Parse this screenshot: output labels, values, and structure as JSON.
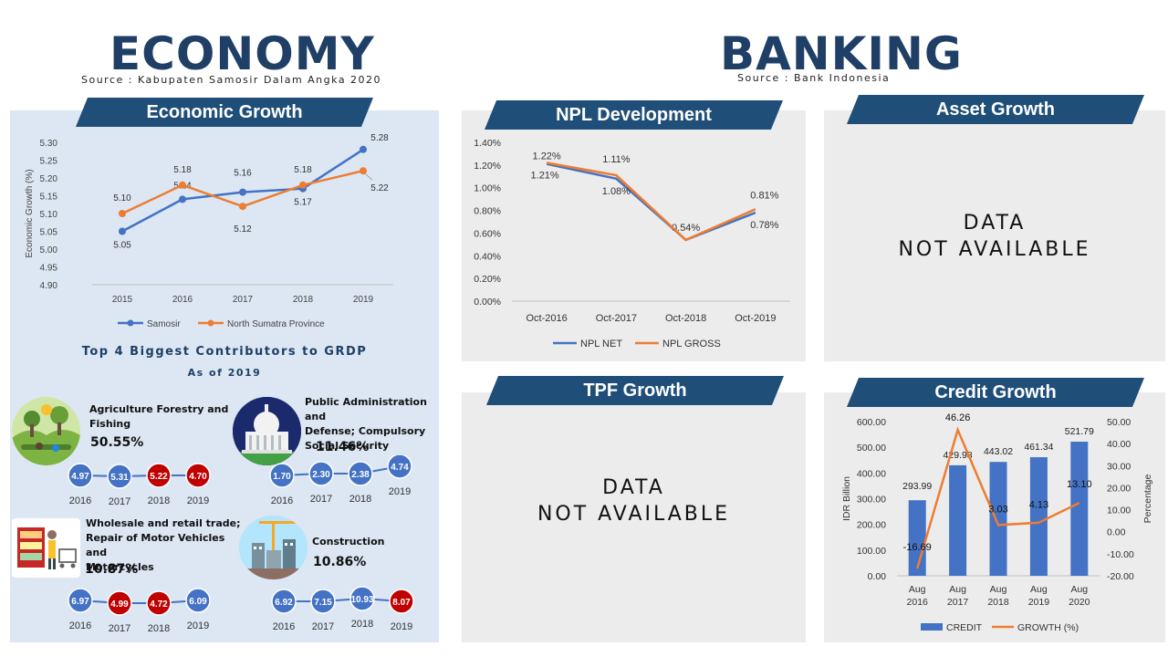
{
  "economy": {
    "title": "ECONOMY",
    "source": "Source : Kabupaten Samosir Dalam Angka 2020",
    "growth_banner": "Economic Growth",
    "contrib_title": "Top 4 Biggest Contributors to GRDP",
    "contrib_sub": "As of 2019",
    "contributors": [
      {
        "name_lines": [
          "Agriculture Forestry and",
          "Fishing"
        ],
        "share": "50.55%",
        "years": [
          "2016",
          "2017",
          "2018",
          "2019"
        ],
        "values": [
          "4.97",
          "5.31",
          "5.22",
          "4.70"
        ],
        "colors": [
          "#4472c4",
          "#4472c4",
          "#c00000",
          "#c00000"
        ]
      },
      {
        "name_lines": [
          "Public Administration and",
          "Defense; Compulsory",
          "Social Security"
        ],
        "share": "11.46%",
        "years": [
          "2016",
          "2017",
          "2018",
          "2019"
        ],
        "values": [
          "1.70",
          "2.30",
          "2.38",
          "4.74"
        ],
        "colors": [
          "#4472c4",
          "#4472c4",
          "#4472c4",
          "#4472c4"
        ]
      },
      {
        "name_lines": [
          "Wholesale and retail trade;",
          "Repair of Motor Vehicles and",
          "Motorcycles"
        ],
        "share": "10.87%",
        "years": [
          "2016",
          "2017",
          "2018",
          "2019"
        ],
        "values": [
          "6.97",
          "4.99",
          "4.72",
          "6.09"
        ],
        "colors": [
          "#4472c4",
          "#c00000",
          "#c00000",
          "#4472c4"
        ]
      },
      {
        "name_lines": [
          "Construction"
        ],
        "share": "10.86%",
        "years": [
          "2016",
          "2017",
          "2018",
          "2019"
        ],
        "values": [
          "6.92",
          "7.15",
          "10.93",
          "8.07"
        ],
        "colors": [
          "#4472c4",
          "#4472c4",
          "#4472c4",
          "#c00000"
        ]
      }
    ]
  },
  "banking": {
    "title": "BANKING",
    "source": "Source : Bank Indonesia",
    "npl_banner": "NPL Development",
    "asset_banner": "Asset Growth",
    "tpf_banner": "TPF Growth",
    "credit_banner": "Credit Growth",
    "na_line1": "DATA",
    "na_line2": "NOT AVAILABLE"
  },
  "chart_data": [
    {
      "type": "line",
      "x": [
        "2015",
        "2016",
        "2017",
        "2018",
        "2019"
      ],
      "ylabel": "Economic Growth (%)",
      "ylim": [
        4.9,
        5.3
      ],
      "yticks": [
        "4.90",
        "4.95",
        "5.00",
        "5.05",
        "5.10",
        "5.15",
        "5.20",
        "5.25",
        "5.30"
      ],
      "series": [
        {
          "name": "Samosir",
          "color": "#4472c4",
          "values": [
            5.05,
            5.14,
            5.16,
            5.17,
            5.28
          ],
          "labels": [
            "5.05",
            "5.14",
            "",
            "5.17",
            "5.28"
          ]
        },
        {
          "name": "North Sumatra Province",
          "color": "#ed7d31",
          "values": [
            5.1,
            5.18,
            5.12,
            5.18,
            5.22
          ],
          "labels": [
            "5.10",
            "5.18",
            "5.12",
            "5.18",
            "5.22"
          ]
        }
      ],
      "extra_labels": [
        "5.16"
      ],
      "legend": "bottom"
    },
    {
      "type": "line",
      "x": [
        "Oct-2016",
        "Oct-2017",
        "Oct-2018",
        "Oct-2019"
      ],
      "ylim": [
        0.0,
        1.4
      ],
      "yticks": [
        "0.00%",
        "0.20%",
        "0.40%",
        "0.60%",
        "0.80%",
        "1.00%",
        "1.20%",
        "1.40%"
      ],
      "series": [
        {
          "name": "NPL NET",
          "color": "#4472c4",
          "values": [
            1.21,
            1.08,
            0.54,
            0.78
          ],
          "labels": [
            "1.21%",
            "1.08%",
            "0.54%",
            "0.78%"
          ]
        },
        {
          "name": "NPL GROSS",
          "color": "#ed7d31",
          "values": [
            1.22,
            1.11,
            0.54,
            0.81
          ],
          "labels": [
            "1.22%",
            "1.11%",
            "",
            "0.81%"
          ]
        }
      ],
      "legend": "bottom"
    },
    {
      "type": "bar",
      "categories": [
        [
          "Aug",
          "2016"
        ],
        [
          "Aug",
          "2017"
        ],
        [
          "Aug",
          "2018"
        ],
        [
          "Aug",
          "2019"
        ],
        [
          "Aug",
          "2020"
        ]
      ],
      "ylabel": "IDR Billion",
      "y2label": "Percentage",
      "ylim": [
        0,
        600
      ],
      "y2lim": [
        -20,
        50
      ],
      "yticks": [
        "0.00",
        "100.00",
        "200.00",
        "300.00",
        "400.00",
        "500.00",
        "600.00"
      ],
      "y2ticks": [
        "-20.00",
        "-10.00",
        "0.00",
        "10.00",
        "20.00",
        "30.00",
        "40.00",
        "50.00"
      ],
      "series": [
        {
          "name": "CREDIT",
          "kind": "bar",
          "color": "#4472c4",
          "values": [
            293.99,
            429.98,
            443.02,
            461.34,
            521.79
          ],
          "labels": [
            "293.99",
            "429.98",
            "443.02",
            "461.34",
            "521.79"
          ]
        },
        {
          "name": "GROWTH (%)",
          "kind": "line",
          "axis": "right",
          "color": "#ed7d31",
          "values": [
            -16.69,
            46.26,
            3.03,
            4.13,
            13.1
          ],
          "labels": [
            "-16.69",
            "46.26",
            "3.03",
            "4.13",
            "13.10"
          ]
        }
      ],
      "legend": "bottom"
    }
  ]
}
